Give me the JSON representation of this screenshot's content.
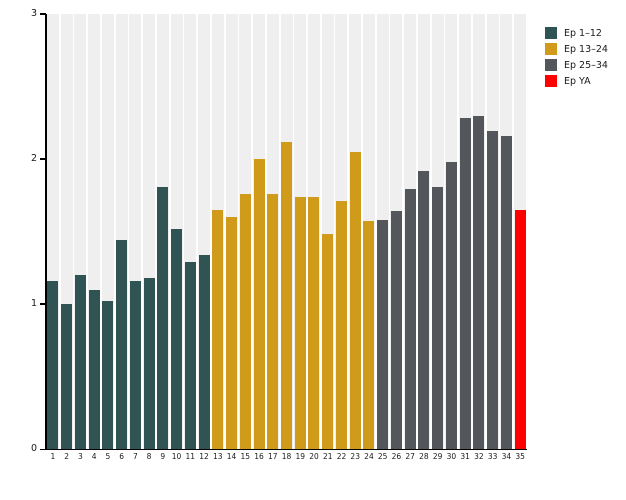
{
  "chart_data": {
    "type": "bar",
    "title": "",
    "xlabel": "",
    "ylabel": "",
    "ylim": [
      0,
      3
    ],
    "yticks": [
      "0",
      "1",
      "2",
      "3"
    ],
    "grid": false,
    "legend_position": "top-right",
    "background_band_color": "#efefef",
    "axis_color": "#000000",
    "categories": [
      "1",
      "2",
      "3",
      "4",
      "5",
      "6",
      "7",
      "8",
      "9",
      "10",
      "11",
      "12",
      "13",
      "14",
      "15",
      "16",
      "17",
      "18",
      "19",
      "20",
      "21",
      "22",
      "23",
      "24",
      "25",
      "26",
      "27",
      "28",
      "29",
      "30",
      "31",
      "32",
      "33",
      "34",
      "35"
    ],
    "values": [
      1.16,
      1.0,
      1.2,
      1.1,
      1.02,
      1.44,
      1.16,
      1.18,
      1.81,
      1.52,
      1.29,
      1.34,
      1.65,
      1.6,
      1.76,
      2.0,
      1.76,
      2.12,
      1.74,
      1.74,
      1.48,
      1.71,
      2.05,
      1.57,
      1.58,
      1.64,
      1.79,
      1.92,
      1.81,
      1.98,
      2.28,
      2.3,
      2.19,
      2.16,
      1.65
    ],
    "group_of_bar": [
      0,
      0,
      0,
      0,
      0,
      0,
      0,
      0,
      0,
      0,
      0,
      0,
      1,
      1,
      1,
      1,
      1,
      1,
      1,
      1,
      1,
      1,
      1,
      1,
      2,
      2,
      2,
      2,
      2,
      2,
      2,
      2,
      2,
      2,
      3
    ],
    "legend": [
      {
        "label": "Ep 1–12",
        "color": "#305454"
      },
      {
        "label": "Ep 13–24",
        "color": "#d09a1b"
      },
      {
        "label": "Ep 25–34",
        "color": "#53575b"
      },
      {
        "label": "Ep YA",
        "color": "#ff0000"
      }
    ]
  }
}
